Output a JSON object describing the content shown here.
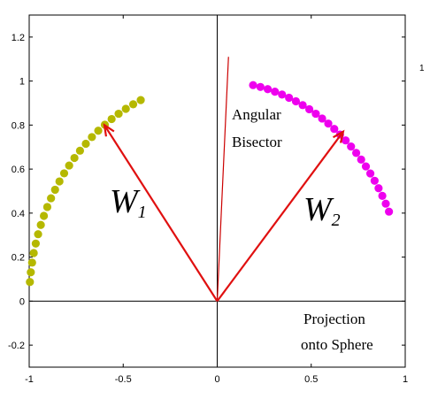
{
  "chart_data": {
    "type": "scatter",
    "xlim": [
      -1,
      1
    ],
    "ylim": [
      -0.3,
      1.3
    ],
    "x_ticks": [
      "-1",
      "-0.5",
      "0",
      "0.5",
      "1"
    ],
    "y_ticks": [
      "-0.2",
      "0",
      "0.2",
      "0.4",
      "0.6",
      "0.8",
      "1",
      "1.2"
    ],
    "grid": false,
    "series": [
      {
        "color": "#b5b800",
        "arc": {
          "radius": 1.0,
          "start_deg": 114,
          "end_deg": 175,
          "steps": 24
        }
      },
      {
        "color": "#ee00ee",
        "arc": {
          "radius": 1.0,
          "start_deg": 24,
          "end_deg": 79,
          "steps": 24
        }
      }
    ],
    "vectors": [
      {
        "label_main": "W",
        "label_sub": "1",
        "x": -0.6,
        "y": 0.8,
        "color": "#e01010"
      },
      {
        "label_main": "W",
        "label_sub": "2",
        "x": 0.67,
        "y": 0.77,
        "color": "#e01010"
      }
    ],
    "bisector": {
      "x": 0.06,
      "y": 1.11,
      "color": "#cc0000"
    },
    "annotations": {
      "bisector_line1": "Angular",
      "bisector_line2": "Bisector",
      "projection_line1": "Projection",
      "projection_line2": "onto Sphere"
    },
    "stray_label": "1"
  }
}
